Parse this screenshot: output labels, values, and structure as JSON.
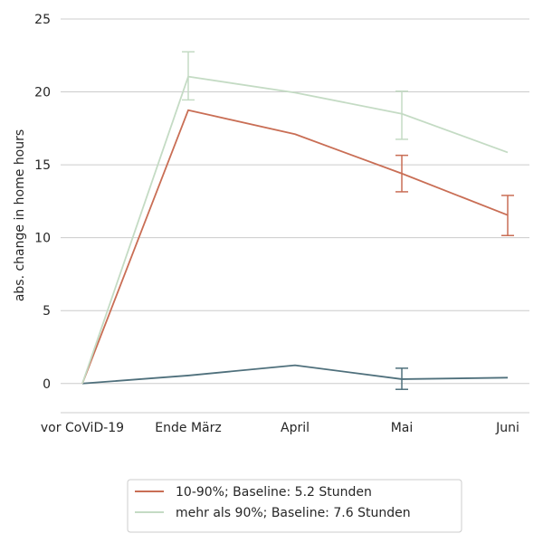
{
  "chart_data": {
    "type": "line",
    "categories": [
      "vor CoViD-19",
      "Ende März",
      "April",
      "Mai",
      "Juni"
    ],
    "ylabel": "abs. change in home hours",
    "ylim": [
      -2,
      25
    ],
    "yticks": [
      "0",
      "5",
      "10",
      "15",
      "20",
      "25"
    ],
    "grid": true,
    "legend_position": "bottom-center",
    "series": [
      {
        "name": "",
        "color": "#4f707c",
        "values": [
          0,
          0.55,
          1.25,
          0.3,
          0.4
        ],
        "error_bars": [
          null,
          null,
          null,
          [
            -0.4,
            1.05
          ],
          null
        ]
      },
      {
        "name": "10-90%; Baseline: 5.2 Stunden",
        "color": "#c96e55",
        "values": [
          0,
          18.75,
          17.1,
          14.4,
          11.55
        ],
        "error_bars": [
          null,
          null,
          null,
          [
            13.15,
            15.65
          ],
          [
            10.15,
            12.9
          ]
        ]
      },
      {
        "name": "mehr als 90%; Baseline: 7.6 Stunden",
        "color": "#c4dbc4",
        "values": [
          0,
          21.05,
          19.95,
          18.5,
          15.85
        ],
        "error_bars": [
          null,
          [
            19.45,
            22.75
          ],
          null,
          [
            16.75,
            20.05
          ],
          null
        ]
      }
    ]
  }
}
